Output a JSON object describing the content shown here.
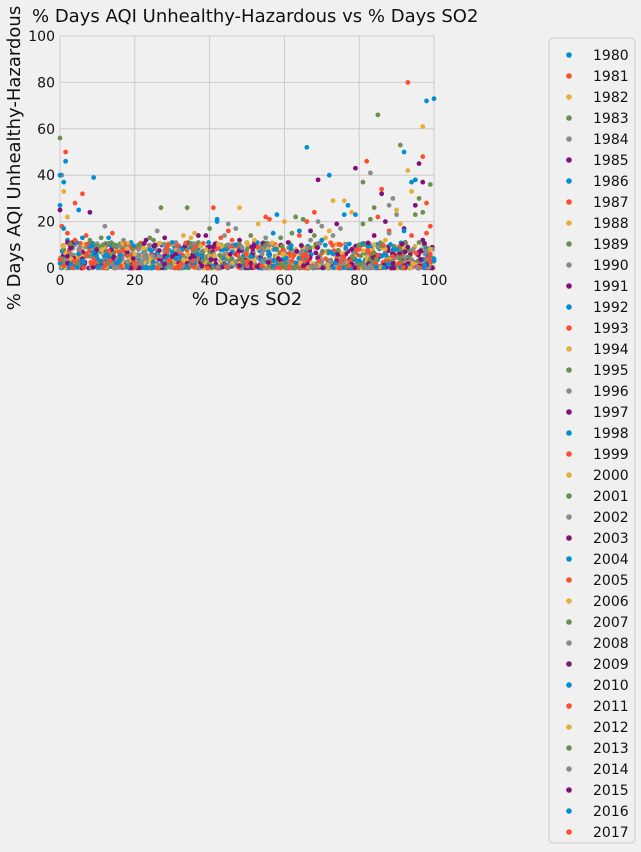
{
  "chart_data": {
    "type": "scatter",
    "title": "% Days AQI Unhealthy-Hazardous vs % Days SO2",
    "xlabel": "% Days SO2",
    "ylabel": "% Days AQI Unhealthy-Hazardous",
    "xlim": [
      0,
      100
    ],
    "ylim": [
      0,
      100
    ],
    "xticks": [
      0,
      20,
      40,
      60,
      80,
      100
    ],
    "yticks": [
      0,
      20,
      40,
      60,
      80,
      100
    ],
    "grid": true,
    "legend_position": "right, outside plot",
    "palette": [
      "#008fd5",
      "#fc4f30",
      "#e5ae38",
      "#6d904f",
      "#8b8b8b",
      "#810f7c"
    ],
    "series": [
      {
        "name": "1980",
        "points": [
          [
            0,
            27
          ],
          [
            1.5,
            46
          ],
          [
            1,
            37
          ],
          [
            9,
            39
          ],
          [
            2,
            12
          ],
          [
            18,
            9
          ],
          [
            25,
            5
          ]
        ]
      },
      {
        "name": "1981",
        "points": [
          [
            1.5,
            50
          ],
          [
            0.5,
            18
          ],
          [
            6,
            32
          ],
          [
            55,
            22
          ],
          [
            82,
            46
          ],
          [
            12,
            8
          ],
          [
            48,
            4
          ]
        ]
      },
      {
        "name": "1982",
        "points": [
          [
            1,
            33
          ],
          [
            2,
            22
          ],
          [
            48,
            26
          ],
          [
            97,
            61
          ],
          [
            76,
            29
          ],
          [
            30,
            10
          ],
          [
            62,
            6
          ]
        ]
      },
      {
        "name": "1983",
        "points": [
          [
            0,
            56
          ],
          [
            27,
            26
          ],
          [
            34,
            26
          ],
          [
            85,
            66
          ],
          [
            91,
            53
          ],
          [
            40,
            7
          ],
          [
            70,
            12
          ]
        ]
      },
      {
        "name": "1984",
        "points": [
          [
            0.5,
            40
          ],
          [
            12,
            18
          ],
          [
            45,
            19
          ],
          [
            73,
            14
          ],
          [
            83,
            41
          ],
          [
            22,
            6
          ],
          [
            58,
            9
          ]
        ]
      },
      {
        "name": "1985",
        "points": [
          [
            0,
            25
          ],
          [
            8,
            24
          ],
          [
            37,
            14
          ],
          [
            79,
            43
          ],
          [
            96,
            45
          ],
          [
            52,
            11
          ],
          [
            15,
            3
          ]
        ]
      },
      {
        "name": "1986",
        "points": [
          [
            5,
            25
          ],
          [
            66,
            52
          ],
          [
            72,
            40
          ],
          [
            98,
            72
          ],
          [
            92,
            50
          ],
          [
            35,
            9
          ],
          [
            10,
            4
          ]
        ]
      },
      {
        "name": "1987",
        "points": [
          [
            4,
            28
          ],
          [
            41,
            26
          ],
          [
            56,
            21
          ],
          [
            93,
            80
          ],
          [
            97,
            48
          ],
          [
            28,
            7
          ],
          [
            88,
            16
          ]
        ]
      },
      {
        "name": "1988",
        "points": [
          [
            3,
            11
          ],
          [
            35,
            13
          ],
          [
            60,
            20
          ],
          [
            78,
            24
          ],
          [
            94,
            33
          ],
          [
            44,
            5
          ],
          [
            20,
            2
          ]
        ]
      },
      {
        "name": "1989",
        "points": [
          [
            11,
            13
          ],
          [
            25,
            12
          ],
          [
            63,
            22
          ],
          [
            81,
            37
          ],
          [
            99,
            36
          ],
          [
            50,
            8
          ],
          [
            68,
            14
          ]
        ]
      },
      {
        "name": "1990",
        "points": [
          [
            7,
            9
          ],
          [
            31,
            11
          ],
          [
            47,
            17
          ],
          [
            70,
            18
          ],
          [
            88,
            27
          ],
          [
            14,
            4
          ],
          [
            57,
            10
          ]
        ]
      },
      {
        "name": "1991",
        "points": [
          [
            6,
            7
          ],
          [
            28,
            13
          ],
          [
            52,
            10
          ],
          [
            69,
            38
          ],
          [
            86,
            32
          ],
          [
            95,
            27
          ],
          [
            38,
            6
          ]
        ]
      },
      {
        "name": "1992",
        "points": [
          [
            1,
            17
          ],
          [
            19,
            11
          ],
          [
            42,
            20
          ],
          [
            77,
            27
          ],
          [
            100,
            73
          ],
          [
            64,
            16
          ],
          [
            32,
            5
          ]
        ]
      },
      {
        "name": "1993",
        "points": [
          [
            2,
            15
          ],
          [
            14,
            15
          ],
          [
            46,
            12
          ],
          [
            68,
            24
          ],
          [
            98,
            28
          ],
          [
            24,
            4
          ],
          [
            80,
            9
          ]
        ]
      },
      {
        "name": "1994",
        "points": [
          [
            10,
            8
          ],
          [
            33,
            14
          ],
          [
            53,
            19
          ],
          [
            73,
            29
          ],
          [
            93,
            42
          ],
          [
            43,
            3
          ],
          [
            17,
            7
          ]
        ]
      },
      {
        "name": "1995",
        "points": [
          [
            8,
            12
          ],
          [
            21,
            10
          ],
          [
            51,
            14
          ],
          [
            65,
            21
          ],
          [
            84,
            26
          ],
          [
            96,
            30
          ],
          [
            36,
            8
          ]
        ]
      },
      {
        "name": "1996",
        "points": [
          [
            4,
            10
          ],
          [
            26,
            16
          ],
          [
            55,
            13
          ],
          [
            75,
            17
          ],
          [
            90,
            23
          ],
          [
            12,
            5
          ],
          [
            60,
            7
          ]
        ]
      },
      {
        "name": "1997",
        "points": [
          [
            3,
            9
          ],
          [
            23,
            12
          ],
          [
            39,
            14
          ],
          [
            67,
            16
          ],
          [
            87,
            20
          ],
          [
            97,
            37
          ],
          [
            49,
            5
          ]
        ]
      },
      {
        "name": "1998",
        "points": [
          [
            0,
            40
          ],
          [
            13,
            13
          ],
          [
            42,
            21
          ],
          [
            58,
            23
          ],
          [
            79,
            23
          ],
          [
            95,
            38
          ],
          [
            30,
            7
          ]
        ]
      },
      {
        "name": "1999",
        "points": [
          [
            7,
            14
          ],
          [
            29,
            10
          ],
          [
            45,
            16
          ],
          [
            66,
            20
          ],
          [
            86,
            34
          ],
          [
            99,
            18
          ],
          [
            54,
            6
          ]
        ]
      },
      {
        "name": "2000",
        "points": [
          [
            12,
            9
          ],
          [
            36,
            15
          ],
          [
            50,
            11
          ],
          [
            71,
            13
          ],
          [
            90,
            25
          ],
          [
            20,
            3
          ],
          [
            63,
            8
          ]
        ]
      },
      {
        "name": "2001",
        "points": [
          [
            9,
            10
          ],
          [
            24,
            13
          ],
          [
            40,
            17
          ],
          [
            62,
            15
          ],
          [
            83,
            21
          ],
          [
            97,
            24
          ],
          [
            33,
            4
          ]
        ]
      },
      {
        "name": "2002",
        "points": [
          [
            5,
            8
          ],
          [
            17,
            12
          ],
          [
            44,
            14
          ],
          [
            69,
            20
          ],
          [
            89,
            30
          ],
          [
            54,
            6
          ],
          [
            27,
            5
          ]
        ]
      },
      {
        "name": "2003",
        "points": [
          [
            2,
            11
          ],
          [
            22,
            9
          ],
          [
            48,
            12
          ],
          [
            74,
            19
          ],
          [
            92,
            17
          ],
          [
            38,
            4
          ],
          [
            60,
            5
          ]
        ]
      },
      {
        "name": "2004",
        "points": [
          [
            6,
            13
          ],
          [
            30,
            11
          ],
          [
            57,
            15
          ],
          [
            76,
            23
          ],
          [
            94,
            37
          ],
          [
            16,
            4
          ],
          [
            46,
            7
          ]
        ]
      },
      {
        "name": "2005",
        "points": [
          [
            4,
            12
          ],
          [
            19,
            9
          ],
          [
            43,
            13
          ],
          [
            64,
            14
          ],
          [
            85,
            22
          ],
          [
            98,
            15
          ],
          [
            31,
            3
          ]
        ]
      },
      {
        "name": "2006",
        "points": [
          [
            8,
            7
          ],
          [
            26,
            10
          ],
          [
            52,
            12
          ],
          [
            72,
            16
          ],
          [
            91,
            19
          ],
          [
            40,
            5
          ],
          [
            13,
            2
          ]
        ]
      },
      {
        "name": "2007",
        "points": [
          [
            1,
            8
          ],
          [
            15,
            9
          ],
          [
            37,
            11
          ],
          [
            59,
            13
          ],
          [
            81,
            19
          ],
          [
            95,
            23
          ],
          [
            49,
            4
          ]
        ]
      },
      {
        "name": "2008",
        "points": [
          [
            3,
            6
          ],
          [
            21,
            8
          ],
          [
            45,
            10
          ],
          [
            67,
            12
          ],
          [
            88,
            15
          ],
          [
            28,
            3
          ],
          [
            56,
            4
          ]
        ]
      },
      {
        "name": "2009",
        "points": [
          [
            2,
            5
          ],
          [
            18,
            7
          ],
          [
            41,
            9
          ],
          [
            61,
            11
          ],
          [
            84,
            14
          ],
          [
            97,
            12
          ],
          [
            34,
            2
          ]
        ]
      },
      {
        "name": "2010",
        "points": [
          [
            5,
            6
          ],
          [
            24,
            8
          ],
          [
            47,
            10
          ],
          [
            70,
            12
          ],
          [
            92,
            16
          ],
          [
            100,
            4
          ],
          [
            15,
            2
          ]
        ]
      },
      {
        "name": "2011",
        "points": [
          [
            7,
            5
          ],
          [
            32,
            7
          ],
          [
            53,
            9
          ],
          [
            75,
            10
          ],
          [
            94,
            14
          ],
          [
            25,
            2
          ],
          [
            62,
            3
          ]
        ]
      },
      {
        "name": "2012",
        "points": [
          [
            3,
            4
          ],
          [
            20,
            6
          ],
          [
            39,
            8
          ],
          [
            65,
            9
          ],
          [
            87,
            12
          ],
          [
            99,
            8
          ],
          [
            46,
            2
          ]
        ]
      },
      {
        "name": "2013",
        "points": [
          [
            1,
            3
          ],
          [
            16,
            5
          ],
          [
            38,
            7
          ],
          [
            58,
            8
          ],
          [
            80,
            10
          ],
          [
            96,
            11
          ],
          [
            27,
            1
          ]
        ]
      },
      {
        "name": "2014",
        "points": [
          [
            4,
            3
          ],
          [
            23,
            4
          ],
          [
            44,
            6
          ],
          [
            63,
            7
          ],
          [
            85,
            9
          ],
          [
            98,
            7
          ],
          [
            33,
            1
          ]
        ]
      },
      {
        "name": "2015",
        "points": [
          [
            2,
            2
          ],
          [
            14,
            4
          ],
          [
            36,
            5
          ],
          [
            56,
            6
          ],
          [
            78,
            8
          ],
          [
            93,
            9
          ],
          [
            48,
            1
          ]
        ]
      },
      {
        "name": "2016",
        "points": [
          [
            0,
            2
          ],
          [
            11,
            3
          ],
          [
            31,
            4
          ],
          [
            51,
            5
          ],
          [
            73,
            6
          ],
          [
            90,
            8
          ],
          [
            100,
            3
          ]
        ]
      },
      {
        "name": "2017",
        "points": [
          [
            1,
            1
          ],
          [
            9,
            2
          ],
          [
            29,
            3
          ],
          [
            50,
            3
          ],
          [
            71,
            4
          ],
          [
            89,
            5
          ],
          [
            99,
            6
          ]
        ]
      }
    ]
  }
}
